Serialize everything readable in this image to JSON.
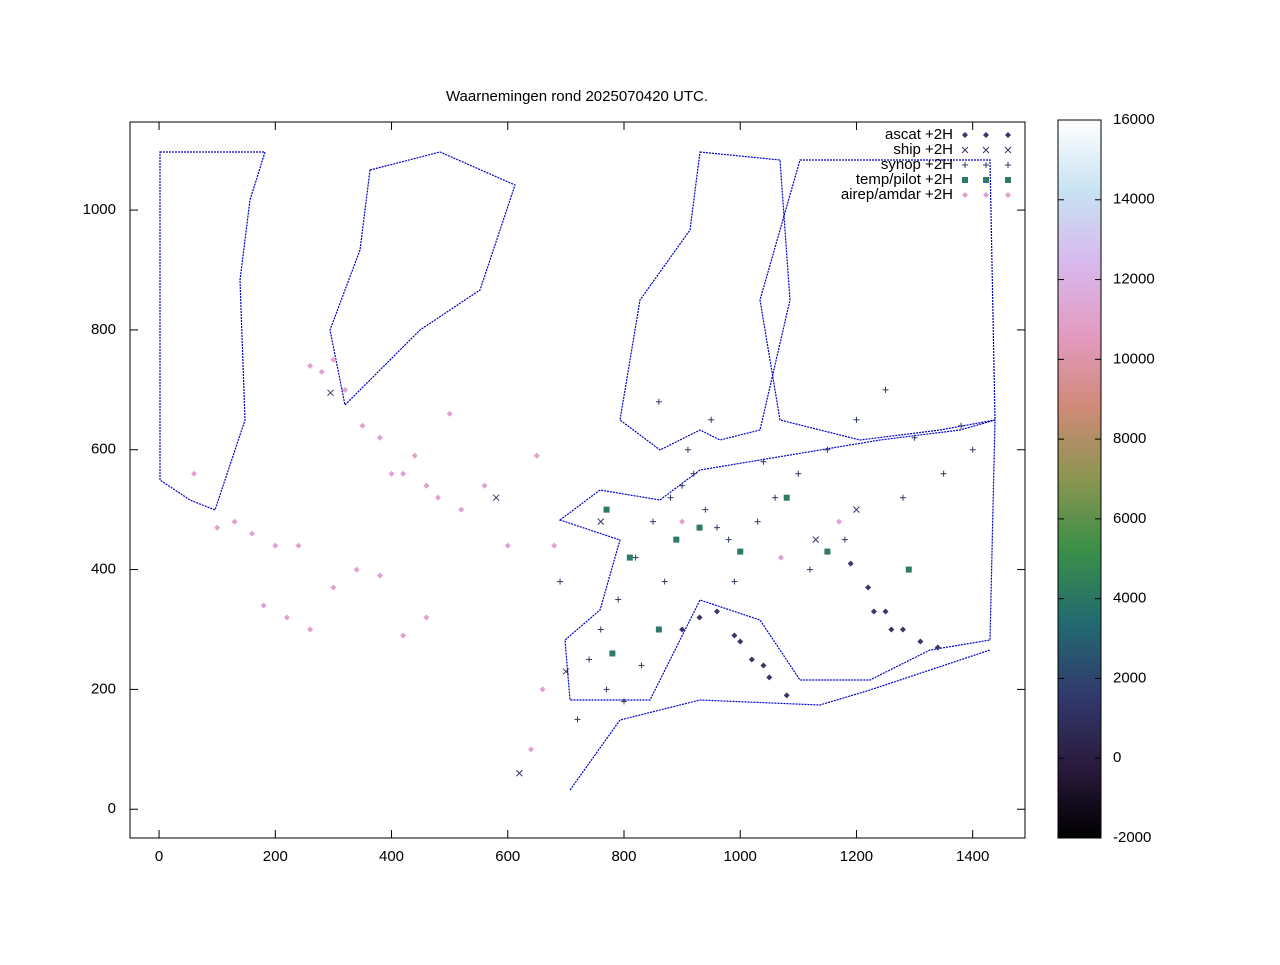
{
  "chart_data": {
    "type": "scatter",
    "title": "Waarnemingen rond 2025070420 UTC.",
    "xlim": [
      -50,
      1490
    ],
    "ylim": [
      -48,
      1147
    ],
    "xticks": [
      0,
      200,
      400,
      600,
      800,
      1000,
      1200,
      1400
    ],
    "yticks": [
      0,
      200,
      400,
      600,
      800,
      1000
    ],
    "legend": "top-right",
    "colorbar": {
      "lim": [
        -2000,
        16000
      ],
      "ticks": [
        -2000,
        0,
        2000,
        4000,
        6000,
        8000,
        10000,
        12000,
        14000,
        16000
      ]
    },
    "series": [
      {
        "name": "ascat +2H",
        "color": "#3a3468",
        "marker": "diamond",
        "x": [
          900,
          930,
          960,
          990,
          1020,
          1050,
          1080,
          1000,
          1040,
          1190,
          1220,
          1250,
          1280,
          1310,
          1340,
          1230,
          1260
        ],
        "y": [
          300,
          320,
          330,
          290,
          250,
          220,
          190,
          280,
          240,
          410,
          370,
          330,
          300,
          280,
          270,
          330,
          300
        ]
      },
      {
        "name": "ship +2H",
        "color": "#3a3468",
        "marker": "cross",
        "x": [
          295,
          620,
          700,
          760,
          1130,
          1200,
          580
        ],
        "y": [
          695,
          60,
          230,
          480,
          450,
          500,
          520
        ]
      },
      {
        "name": "synop +2H",
        "color": "#2f3b5e",
        "marker": "plus",
        "x": [
          760,
          790,
          820,
          850,
          880,
          900,
          920,
          940,
          960,
          980,
          1000,
          1030,
          1060,
          1100,
          1150,
          1200,
          1250,
          1300,
          1350,
          1400,
          740,
          770,
          800,
          830,
          870,
          910,
          950,
          990,
          1120,
          1180,
          1280,
          1380,
          690,
          720,
          860,
          1040
        ],
        "y": [
          300,
          350,
          420,
          480,
          520,
          540,
          560,
          500,
          470,
          450,
          430,
          480,
          520,
          560,
          600,
          650,
          700,
          620,
          560,
          600,
          250,
          200,
          180,
          240,
          380,
          600,
          650,
          380,
          400,
          450,
          520,
          640,
          380,
          150,
          680,
          580
        ]
      },
      {
        "name": "temp/pilot +2H",
        "color": "#2e7a68",
        "marker": "square",
        "x": [
          770,
          810,
          890,
          930,
          1000,
          1080,
          1150,
          1290,
          780,
          860
        ],
        "y": [
          500,
          420,
          450,
          470,
          430,
          520,
          430,
          400,
          260,
          300
        ]
      },
      {
        "name": "airep/amdar +2H",
        "color": "#e2a0d0",
        "marker": "diamond",
        "x": [
          60,
          100,
          130,
          160,
          200,
          240,
          260,
          280,
          300,
          320,
          350,
          380,
          400,
          420,
          440,
          460,
          480,
          500,
          520,
          560,
          600,
          640,
          660,
          180,
          220,
          260,
          300,
          340,
          380,
          420,
          460,
          650,
          680,
          900,
          1070,
          1170
        ],
        "y": [
          560,
          470,
          480,
          460,
          440,
          440,
          740,
          730,
          750,
          700,
          640,
          620,
          560,
          560,
          590,
          540,
          520,
          660,
          500,
          540,
          440,
          100,
          200,
          340,
          320,
          300,
          370,
          400,
          390,
          290,
          320,
          590,
          440,
          480,
          420,
          480
        ]
      }
    ]
  }
}
